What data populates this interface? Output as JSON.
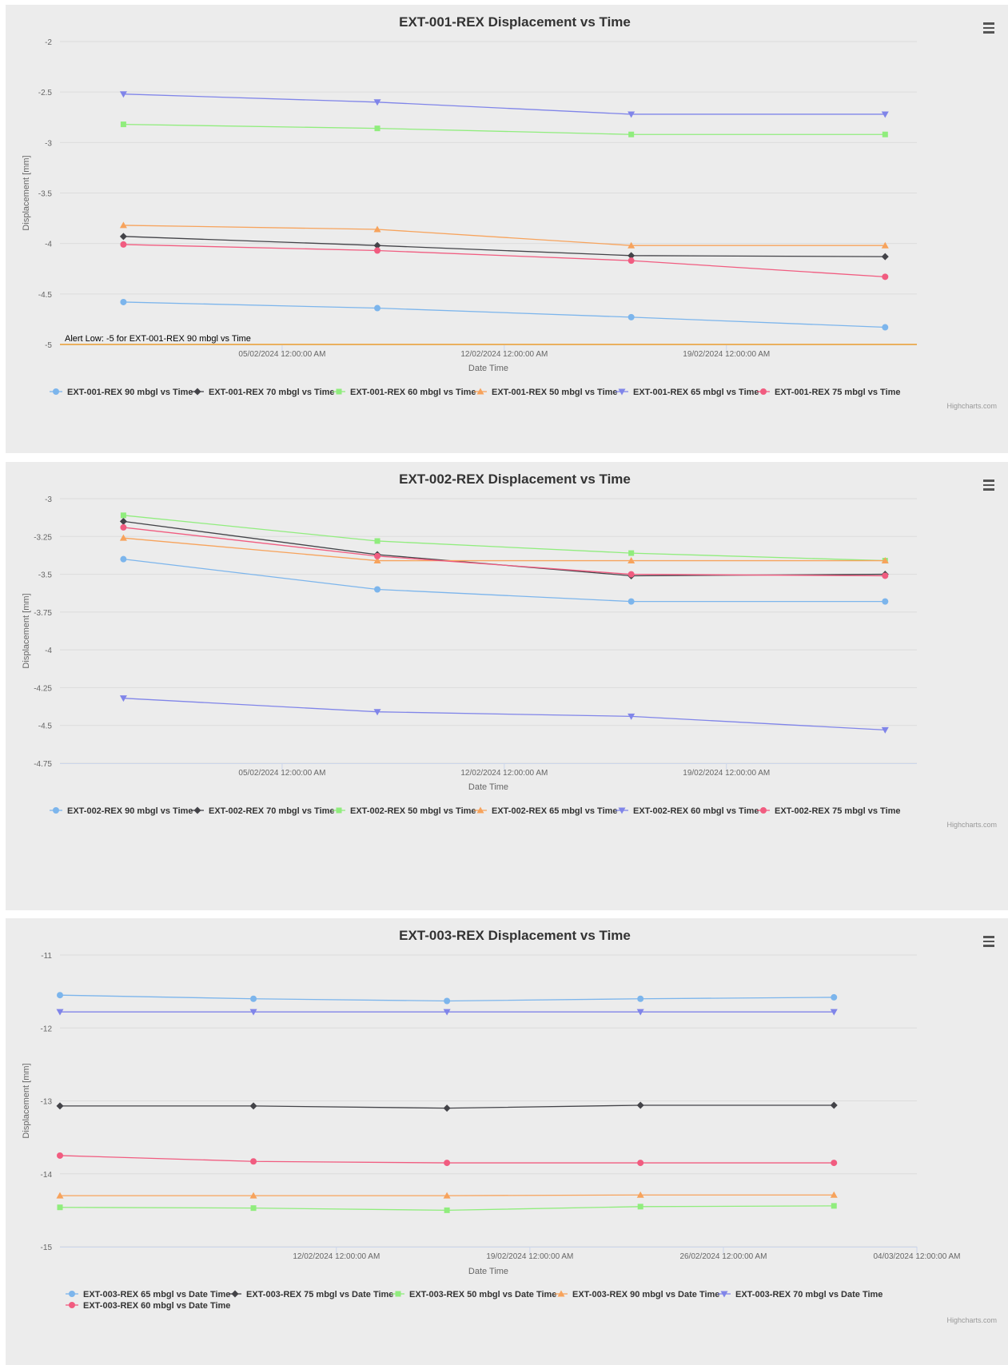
{
  "credits": "Highcharts.com",
  "charts": [
    {
      "title": "EXT-001-REX Displacement vs Time",
      "xlabel": "Date Time",
      "ylabel": "Displacement [mm]",
      "ylim": [
        -5,
        -2
      ],
      "yticks": [
        -2,
        -2.5,
        -3,
        -3.5,
        -4,
        -4.5,
        -5
      ],
      "xlim": [
        "2024-01-29",
        "2024-02-25"
      ],
      "xticks": [
        {
          "date": "2024-02-05",
          "label": "05/02/2024 12:00:00 AM"
        },
        {
          "date": "2024-02-12",
          "label": "12/02/2024 12:00:00 AM"
        },
        {
          "date": "2024-02-19",
          "label": "19/02/2024 12:00:00 AM"
        }
      ],
      "plotline": {
        "value": -5,
        "label": "Alert Low: -5 for EXT-001-REX 90 mbgl vs Time"
      },
      "legend_rows": [
        6
      ],
      "series": [
        {
          "name": "EXT-001-REX 90 mbgl vs Time",
          "color": "#7cb5ec",
          "marker": "circle",
          "x": [
            "2024-01-31",
            "2024-02-08",
            "2024-02-16",
            "2024-02-24"
          ],
          "y": [
            -4.58,
            -4.64,
            -4.73,
            -4.83
          ]
        },
        {
          "name": "EXT-001-REX 70 mbgl vs Time",
          "color": "#434348",
          "marker": "diamond",
          "x": [
            "2024-01-31",
            "2024-02-08",
            "2024-02-16",
            "2024-02-24"
          ],
          "y": [
            -3.93,
            -4.02,
            -4.12,
            -4.13
          ]
        },
        {
          "name": "EXT-001-REX 60 mbgl vs Time",
          "color": "#90ed7d",
          "marker": "square",
          "x": [
            "2024-01-31",
            "2024-02-08",
            "2024-02-16",
            "2024-02-24"
          ],
          "y": [
            -2.82,
            -2.86,
            -2.92,
            -2.92
          ]
        },
        {
          "name": "EXT-001-REX 50 mbgl vs Time",
          "color": "#f7a35c",
          "marker": "triangle",
          "x": [
            "2024-01-31",
            "2024-02-08",
            "2024-02-16",
            "2024-02-24"
          ],
          "y": [
            -3.82,
            -3.86,
            -4.02,
            -4.02
          ]
        },
        {
          "name": "EXT-001-REX 65 mbgl vs Time",
          "color": "#8085e9",
          "marker": "triangle-down",
          "x": [
            "2024-01-31",
            "2024-02-08",
            "2024-02-16",
            "2024-02-24"
          ],
          "y": [
            -2.52,
            -2.6,
            -2.72,
            -2.72
          ]
        },
        {
          "name": "EXT-001-REX 75 mbgl vs Time",
          "color": "#f15c80",
          "marker": "circle",
          "x": [
            "2024-01-31",
            "2024-02-08",
            "2024-02-16",
            "2024-02-24"
          ],
          "y": [
            -4.01,
            -4.07,
            -4.17,
            -4.33
          ]
        }
      ]
    },
    {
      "title": "EXT-002-REX Displacement vs Time",
      "xlabel": "Date Time",
      "ylabel": "Displacement [mm]",
      "ylim": [
        -4.75,
        -3
      ],
      "yticks": [
        -3,
        -3.25,
        -3.5,
        -3.75,
        -4,
        -4.25,
        -4.5,
        -4.75
      ],
      "xlim": [
        "2024-01-29",
        "2024-02-25"
      ],
      "xticks": [
        {
          "date": "2024-02-05",
          "label": "05/02/2024 12:00:00 AM"
        },
        {
          "date": "2024-02-12",
          "label": "12/02/2024 12:00:00 AM"
        },
        {
          "date": "2024-02-19",
          "label": "19/02/2024 12:00:00 AM"
        }
      ],
      "legend_rows": [
        6
      ],
      "series": [
        {
          "name": "EXT-002-REX 90 mbgl vs Time",
          "color": "#7cb5ec",
          "marker": "circle",
          "x": [
            "2024-01-31",
            "2024-02-08",
            "2024-02-16",
            "2024-02-24"
          ],
          "y": [
            -3.4,
            -3.6,
            -3.68,
            -3.68
          ]
        },
        {
          "name": "EXT-002-REX 70 mbgl vs Time",
          "color": "#434348",
          "marker": "diamond",
          "x": [
            "2024-01-31",
            "2024-02-08",
            "2024-02-16",
            "2024-02-24"
          ],
          "y": [
            -3.15,
            -3.37,
            -3.51,
            -3.5
          ]
        },
        {
          "name": "EXT-002-REX 50 mbgl vs Time",
          "color": "#90ed7d",
          "marker": "square",
          "x": [
            "2024-01-31",
            "2024-02-08",
            "2024-02-16",
            "2024-02-24"
          ],
          "y": [
            -3.11,
            -3.28,
            -3.36,
            -3.41
          ]
        },
        {
          "name": "EXT-002-REX 65 mbgl vs Time",
          "color": "#f7a35c",
          "marker": "triangle",
          "x": [
            "2024-01-31",
            "2024-02-08",
            "2024-02-16",
            "2024-02-24"
          ],
          "y": [
            -3.26,
            -3.41,
            -3.41,
            -3.41
          ]
        },
        {
          "name": "EXT-002-REX 60 mbgl vs Time",
          "color": "#8085e9",
          "marker": "triangle-down",
          "x": [
            "2024-01-31",
            "2024-02-08",
            "2024-02-16",
            "2024-02-24"
          ],
          "y": [
            -4.32,
            -4.41,
            -4.44,
            -4.53
          ]
        },
        {
          "name": "EXT-002-REX 75 mbgl vs Time",
          "color": "#f15c80",
          "marker": "circle",
          "x": [
            "2024-01-31",
            "2024-02-08",
            "2024-02-16",
            "2024-02-24"
          ],
          "y": [
            -3.19,
            -3.38,
            -3.5,
            -3.51
          ]
        }
      ]
    },
    {
      "title": "EXT-003-REX Displacement vs Time",
      "xlabel": "Date Time",
      "ylabel": "Displacement [mm]",
      "ylim": [
        -15,
        -11
      ],
      "yticks": [
        -11,
        -12,
        -13,
        -14,
        -15
      ],
      "xlim": [
        "2024-02-02",
        "2024-03-04"
      ],
      "xticks": [
        {
          "date": "2024-02-12",
          "label": "12/02/2024 12:00:00 AM"
        },
        {
          "date": "2024-02-19",
          "label": "19/02/2024 12:00:00 AM"
        },
        {
          "date": "2024-02-26",
          "label": "26/02/2024 12:00:00 AM"
        },
        {
          "date": "2024-03-04",
          "label": "04/03/2024 12:00:00 AM"
        }
      ],
      "legend_rows": [
        5,
        1
      ],
      "series": [
        {
          "name": "EXT-003-REX 65 mbgl vs Date Time",
          "color": "#7cb5ec",
          "marker": "circle",
          "x": [
            "2024-02-02",
            "2024-02-09",
            "2024-02-16",
            "2024-02-23",
            "2024-03-01"
          ],
          "y": [
            -11.55,
            -11.6,
            -11.63,
            -11.6,
            -11.58
          ]
        },
        {
          "name": "EXT-003-REX 75 mbgl vs Date Time",
          "color": "#434348",
          "marker": "diamond",
          "x": [
            "2024-02-02",
            "2024-02-09",
            "2024-02-16",
            "2024-02-23",
            "2024-03-01"
          ],
          "y": [
            -13.07,
            -13.07,
            -13.1,
            -13.06,
            -13.06
          ]
        },
        {
          "name": "EXT-003-REX 50 mbgl vs Date Time",
          "color": "#90ed7d",
          "marker": "square",
          "x": [
            "2024-02-02",
            "2024-02-09",
            "2024-02-16",
            "2024-02-23",
            "2024-03-01"
          ],
          "y": [
            -14.46,
            -14.47,
            -14.5,
            -14.45,
            -14.44
          ]
        },
        {
          "name": "EXT-003-REX 90 mbgl vs Date Time",
          "color": "#f7a35c",
          "marker": "triangle",
          "x": [
            "2024-02-02",
            "2024-02-09",
            "2024-02-16",
            "2024-02-23",
            "2024-03-01"
          ],
          "y": [
            -14.3,
            -14.3,
            -14.3,
            -14.29,
            -14.29
          ]
        },
        {
          "name": "EXT-003-REX 70 mbgl vs Date Time",
          "color": "#8085e9",
          "marker": "triangle-down",
          "x": [
            "2024-02-02",
            "2024-02-09",
            "2024-02-16",
            "2024-02-23",
            "2024-03-01"
          ],
          "y": [
            -11.78,
            -11.78,
            -11.78,
            -11.78,
            -11.78
          ]
        },
        {
          "name": "EXT-003-REX 60 mbgl vs Date Time",
          "color": "#f15c80",
          "marker": "circle",
          "x": [
            "2024-02-02",
            "2024-02-09",
            "2024-02-16",
            "2024-02-23",
            "2024-03-01"
          ],
          "y": [
            -13.75,
            -13.83,
            -13.85,
            -13.85,
            -13.85
          ]
        }
      ]
    }
  ],
  "chart_data": [
    {
      "type": "line",
      "title": "EXT-001-REX Displacement vs Time",
      "xlabel": "Date Time",
      "ylabel": "Displacement [mm]",
      "ylim": [
        -5,
        -2
      ],
      "grid": "on",
      "legend": "bottom",
      "series": [
        {
          "name": "EXT-001-REX 90 mbgl vs Time",
          "x": [
            "2024-01-31",
            "2024-02-08",
            "2024-02-16",
            "2024-02-24"
          ],
          "y": [
            -4.58,
            -4.64,
            -4.73,
            -4.83
          ]
        },
        {
          "name": "EXT-001-REX 70 mbgl vs Time",
          "x": [
            "2024-01-31",
            "2024-02-08",
            "2024-02-16",
            "2024-02-24"
          ],
          "y": [
            -3.93,
            -4.02,
            -4.12,
            -4.13
          ]
        },
        {
          "name": "EXT-001-REX 60 mbgl vs Time",
          "x": [
            "2024-01-31",
            "2024-02-08",
            "2024-02-16",
            "2024-02-24"
          ],
          "y": [
            -2.82,
            -2.86,
            -2.92,
            -2.92
          ]
        },
        {
          "name": "EXT-001-REX 50 mbgl vs Time",
          "x": [
            "2024-01-31",
            "2024-02-08",
            "2024-02-16",
            "2024-02-24"
          ],
          "y": [
            -3.82,
            -3.86,
            -4.02,
            -4.02
          ]
        },
        {
          "name": "EXT-001-REX 65 mbgl vs Time",
          "x": [
            "2024-01-31",
            "2024-02-08",
            "2024-02-16",
            "2024-02-24"
          ],
          "y": [
            -2.52,
            -2.6,
            -2.72,
            -2.72
          ]
        },
        {
          "name": "EXT-001-REX 75 mbgl vs Time",
          "x": [
            "2024-01-31",
            "2024-02-08",
            "2024-02-16",
            "2024-02-24"
          ],
          "y": [
            -4.01,
            -4.07,
            -4.17,
            -4.33
          ]
        }
      ]
    },
    {
      "type": "line",
      "title": "EXT-002-REX Displacement vs Time",
      "xlabel": "Date Time",
      "ylabel": "Displacement [mm]",
      "ylim": [
        -4.75,
        -3
      ],
      "grid": "on",
      "legend": "bottom",
      "series": [
        {
          "name": "EXT-002-REX 90 mbgl vs Time",
          "x": [
            "2024-01-31",
            "2024-02-08",
            "2024-02-16",
            "2024-02-24"
          ],
          "y": [
            -3.4,
            -3.6,
            -3.68,
            -3.68
          ]
        },
        {
          "name": "EXT-002-REX 70 mbgl vs Time",
          "x": [
            "2024-01-31",
            "2024-02-08",
            "2024-02-16",
            "2024-02-24"
          ],
          "y": [
            -3.15,
            -3.37,
            -3.51,
            -3.5
          ]
        },
        {
          "name": "EXT-002-REX 50 mbgl vs Time",
          "x": [
            "2024-01-31",
            "2024-02-08",
            "2024-02-16",
            "2024-02-24"
          ],
          "y": [
            -3.11,
            -3.28,
            -3.36,
            -3.41
          ]
        },
        {
          "name": "EXT-002-REX 65 mbgl vs Time",
          "x": [
            "2024-01-31",
            "2024-02-08",
            "2024-02-16",
            "2024-02-24"
          ],
          "y": [
            -3.26,
            -3.41,
            -3.41,
            -3.41
          ]
        },
        {
          "name": "EXT-002-REX 60 mbgl vs Time",
          "x": [
            "2024-01-31",
            "2024-02-08",
            "2024-02-16",
            "2024-02-24"
          ],
          "y": [
            -4.32,
            -4.41,
            -4.44,
            -4.53
          ]
        },
        {
          "name": "EXT-002-REX 75 mbgl vs Time",
          "x": [
            "2024-01-31",
            "2024-02-08",
            "2024-02-16",
            "2024-02-24"
          ],
          "y": [
            -3.19,
            -3.38,
            -3.5,
            -3.51
          ]
        }
      ]
    },
    {
      "type": "line",
      "title": "EXT-003-REX Displacement vs Time",
      "xlabel": "Date Time",
      "ylabel": "Displacement [mm]",
      "ylim": [
        -15,
        -11
      ],
      "grid": "on",
      "legend": "bottom",
      "series": [
        {
          "name": "EXT-003-REX 65 mbgl vs Date Time",
          "x": [
            "2024-02-02",
            "2024-02-09",
            "2024-02-16",
            "2024-02-23",
            "2024-03-01"
          ],
          "y": [
            -11.55,
            -11.6,
            -11.63,
            -11.6,
            -11.58
          ]
        },
        {
          "name": "EXT-003-REX 75 mbgl vs Date Time",
          "x": [
            "2024-02-02",
            "2024-02-09",
            "2024-02-16",
            "2024-02-23",
            "2024-03-01"
          ],
          "y": [
            -13.07,
            -13.07,
            -13.1,
            -13.06,
            -13.06
          ]
        },
        {
          "name": "EXT-003-REX 50 mbgl vs Date Time",
          "x": [
            "2024-02-02",
            "2024-02-09",
            "2024-02-16",
            "2024-02-23",
            "2024-03-01"
          ],
          "y": [
            -14.46,
            -14.47,
            -14.5,
            -14.45,
            -14.44
          ]
        },
        {
          "name": "EXT-003-REX 90 mbgl vs Date Time",
          "x": [
            "2024-02-02",
            "2024-02-09",
            "2024-02-16",
            "2024-02-23",
            "2024-03-01"
          ],
          "y": [
            -14.3,
            -14.3,
            -14.3,
            -14.29,
            -14.29
          ]
        },
        {
          "name": "EXT-003-REX 70 mbgl vs Date Time",
          "x": [
            "2024-02-02",
            "2024-02-09",
            "2024-02-16",
            "2024-02-23",
            "2024-03-01"
          ],
          "y": [
            -11.78,
            -11.78,
            -11.78,
            -11.78,
            -11.78
          ]
        },
        {
          "name": "EXT-003-REX 60 mbgl vs Date Time",
          "x": [
            "2024-02-02",
            "2024-02-09",
            "2024-02-16",
            "2024-02-23",
            "2024-03-01"
          ],
          "y": [
            -13.75,
            -13.83,
            -13.85,
            -13.85,
            -13.85
          ]
        }
      ]
    }
  ]
}
